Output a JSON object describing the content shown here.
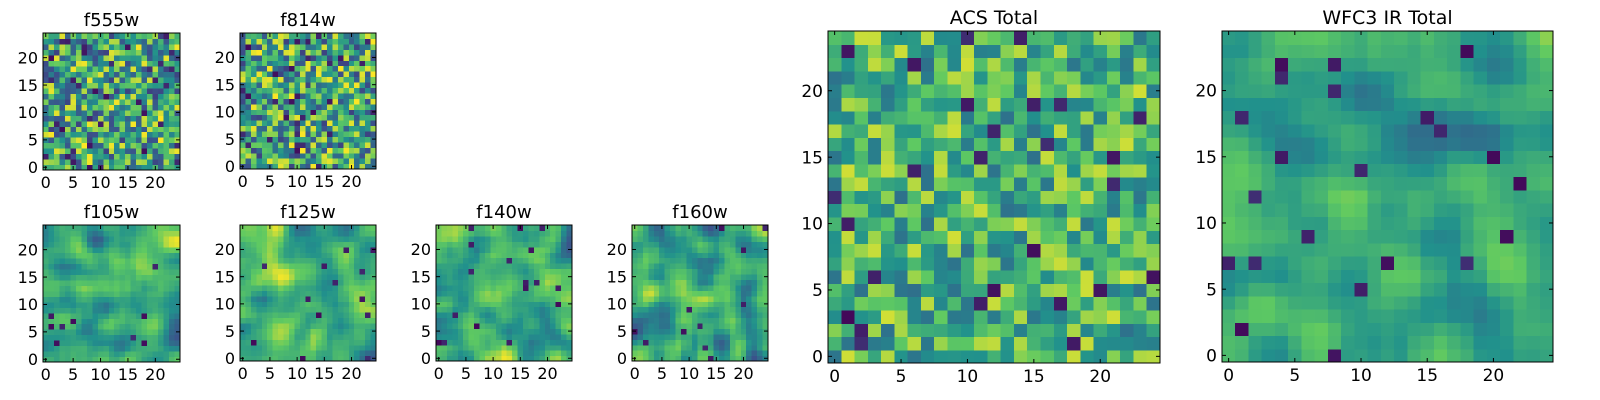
{
  "chart_data": [
    {
      "type": "heatmap",
      "title": "f555w",
      "grid_size": 25,
      "xticks": [
        0,
        5,
        10,
        15,
        20
      ],
      "yticks": [
        0,
        5,
        10,
        15,
        20
      ],
      "colormap": "viridis",
      "mean_level": 0.6,
      "smoothness": 0,
      "noise": 0.5,
      "dark_fraction": 0.05,
      "seed": 11
    },
    {
      "type": "heatmap",
      "title": "f814w",
      "grid_size": 25,
      "xticks": [
        0,
        5,
        10,
        15,
        20
      ],
      "yticks": [
        0,
        5,
        10,
        15,
        20
      ],
      "colormap": "viridis",
      "mean_level": 0.6,
      "smoothness": 0,
      "noise": 0.5,
      "dark_fraction": 0.05,
      "seed": 23
    },
    {
      "type": "heatmap",
      "title": "f105w",
      "grid_size": 25,
      "xticks": [
        0,
        5,
        10,
        15,
        20
      ],
      "yticks": [
        0,
        5,
        10,
        15,
        20
      ],
      "colormap": "viridis",
      "mean_level": 0.62,
      "smoothness": 2,
      "noise": 0.45,
      "dark_fraction": 0.02,
      "seed": 37
    },
    {
      "type": "heatmap",
      "title": "f125w",
      "grid_size": 25,
      "xticks": [
        0,
        5,
        10,
        15,
        20
      ],
      "yticks": [
        0,
        5,
        10,
        15,
        20
      ],
      "colormap": "viridis",
      "mean_level": 0.62,
      "smoothness": 2,
      "noise": 0.45,
      "dark_fraction": 0.03,
      "seed": 41
    },
    {
      "type": "heatmap",
      "title": "f140w",
      "grid_size": 25,
      "xticks": [
        0,
        5,
        10,
        15,
        20
      ],
      "yticks": [
        0,
        5,
        10,
        15,
        20
      ],
      "colormap": "viridis",
      "mean_level": 0.62,
      "smoothness": 2,
      "noise": 0.45,
      "dark_fraction": 0.03,
      "seed": 53
    },
    {
      "type": "heatmap",
      "title": "f160w",
      "grid_size": 25,
      "xticks": [
        0,
        5,
        10,
        15,
        20
      ],
      "yticks": [
        0,
        5,
        10,
        15,
        20
      ],
      "colormap": "viridis",
      "mean_level": 0.6,
      "smoothness": 2,
      "noise": 0.45,
      "dark_fraction": 0.03,
      "seed": 67
    },
    {
      "type": "heatmap",
      "title": "ACS Total",
      "grid_size": 25,
      "xticks": [
        0,
        5,
        10,
        15,
        20
      ],
      "yticks": [
        0,
        5,
        10,
        15,
        20
      ],
      "colormap": "viridis",
      "mean_level": 0.65,
      "smoothness": 0,
      "noise": 0.35,
      "dark_fraction": 0.04,
      "seed": 79
    },
    {
      "type": "heatmap",
      "title": "WFC3 IR Total",
      "grid_size": 25,
      "xticks": [
        0,
        5,
        10,
        15,
        20
      ],
      "yticks": [
        0,
        5,
        10,
        15,
        20
      ],
      "colormap": "viridis",
      "mean_level": 0.58,
      "smoothness": 2,
      "noise": 0.3,
      "dark_fraction": 0.03,
      "seed": 97
    }
  ],
  "colors": {
    "cmap_stops": [
      "#440154",
      "#3b528b",
      "#21918c",
      "#5ec962",
      "#fde725"
    ],
    "frame": "#000000",
    "background": "#ffffff"
  }
}
